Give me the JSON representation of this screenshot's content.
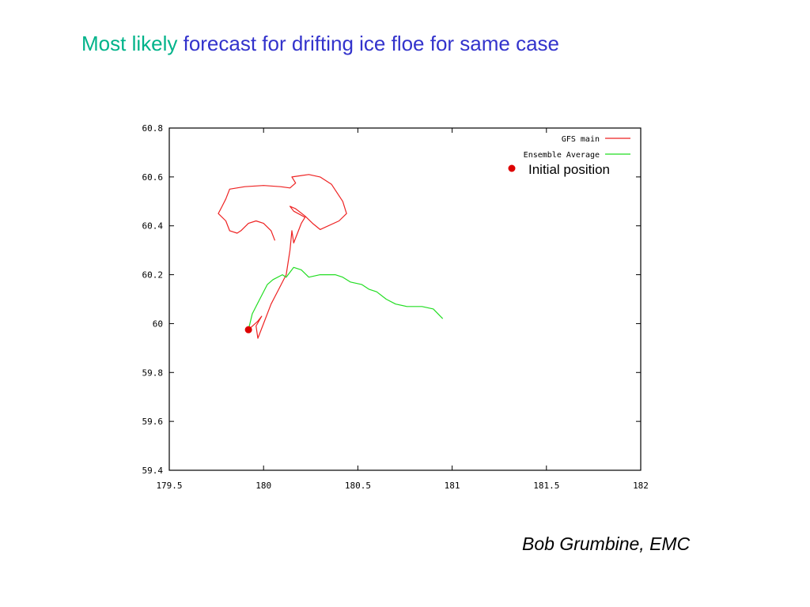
{
  "slide": {
    "title_part1": "Most likely",
    "title_part2": "forecast for drifting ice floe for same case",
    "author": "Bob Grumbine, EMC"
  },
  "colors": {
    "title_part1": "#00b38a",
    "title_part2": "#3333cc",
    "gfs_main": "#ee2222",
    "ensemble_average": "#22dd22",
    "initial_position": "#dd0000"
  },
  "chart_data": {
    "type": "line",
    "title": "",
    "xlabel": "",
    "ylabel": "",
    "xlim": [
      179.5,
      182
    ],
    "ylim": [
      59.4,
      60.8
    ],
    "grid": false,
    "legend_position": "top-right",
    "x_ticks": [
      "179.5",
      "180",
      "180.5",
      "181",
      "181.5",
      "182"
    ],
    "y_ticks": [
      "59.4",
      "59.6",
      "59.8",
      "60",
      "60.2",
      "60.4",
      "60.6",
      "60.8"
    ],
    "series": [
      {
        "name": "GFS main",
        "color": "#ee2222",
        "points": [
          [
            179.92,
            59.975
          ],
          [
            179.97,
            60.01
          ],
          [
            179.99,
            60.03
          ],
          [
            179.96,
            59.99
          ],
          [
            179.97,
            59.94
          ],
          [
            180.0,
            60.0
          ],
          [
            180.04,
            60.08
          ],
          [
            180.08,
            60.14
          ],
          [
            180.12,
            60.2
          ],
          [
            180.13,
            60.25
          ],
          [
            180.14,
            60.3
          ],
          [
            180.15,
            60.38
          ],
          [
            180.16,
            60.33
          ],
          [
            180.18,
            60.37
          ],
          [
            180.2,
            60.41
          ],
          [
            180.22,
            60.435
          ],
          [
            180.16,
            60.46
          ],
          [
            180.14,
            60.48
          ],
          [
            180.17,
            60.47
          ],
          [
            180.22,
            60.44
          ],
          [
            180.26,
            60.41
          ],
          [
            180.3,
            60.385
          ],
          [
            180.4,
            60.42
          ],
          [
            180.44,
            60.45
          ],
          [
            180.42,
            60.5
          ],
          [
            180.36,
            60.57
          ],
          [
            180.3,
            60.6
          ],
          [
            180.24,
            60.61
          ],
          [
            180.15,
            60.6
          ],
          [
            180.17,
            60.575
          ],
          [
            180.14,
            60.555
          ],
          [
            180.09,
            60.56
          ],
          [
            180.0,
            60.565
          ],
          [
            179.9,
            60.56
          ],
          [
            179.82,
            60.55
          ],
          [
            179.8,
            60.51
          ],
          [
            179.78,
            60.48
          ],
          [
            179.76,
            60.45
          ],
          [
            179.8,
            60.42
          ],
          [
            179.82,
            60.38
          ],
          [
            179.86,
            60.37
          ],
          [
            179.88,
            60.38
          ],
          [
            179.92,
            60.41
          ],
          [
            179.96,
            60.42
          ],
          [
            180.0,
            60.41
          ],
          [
            180.04,
            60.38
          ],
          [
            180.06,
            60.34
          ]
        ]
      },
      {
        "name": "Ensemble Average",
        "color": "#22dd22",
        "points": [
          [
            179.92,
            59.975
          ],
          [
            179.94,
            60.04
          ],
          [
            179.98,
            60.1
          ],
          [
            180.02,
            60.16
          ],
          [
            180.05,
            60.18
          ],
          [
            180.1,
            60.2
          ],
          [
            180.12,
            60.19
          ],
          [
            180.16,
            60.23
          ],
          [
            180.2,
            60.22
          ],
          [
            180.24,
            60.19
          ],
          [
            180.3,
            60.2
          ],
          [
            180.38,
            60.2
          ],
          [
            180.42,
            60.19
          ],
          [
            180.46,
            60.17
          ],
          [
            180.52,
            60.16
          ],
          [
            180.56,
            60.14
          ],
          [
            180.6,
            60.13
          ],
          [
            180.65,
            60.1
          ],
          [
            180.7,
            60.08
          ],
          [
            180.76,
            60.07
          ],
          [
            180.84,
            60.07
          ],
          [
            180.9,
            60.06
          ],
          [
            180.95,
            60.02
          ]
        ]
      }
    ],
    "markers": [
      {
        "name": "Initial position",
        "x": 179.92,
        "y": 59.975,
        "color": "#dd0000"
      }
    ],
    "legend": [
      "GFS main",
      "Ensemble Average",
      "Initial position"
    ]
  }
}
